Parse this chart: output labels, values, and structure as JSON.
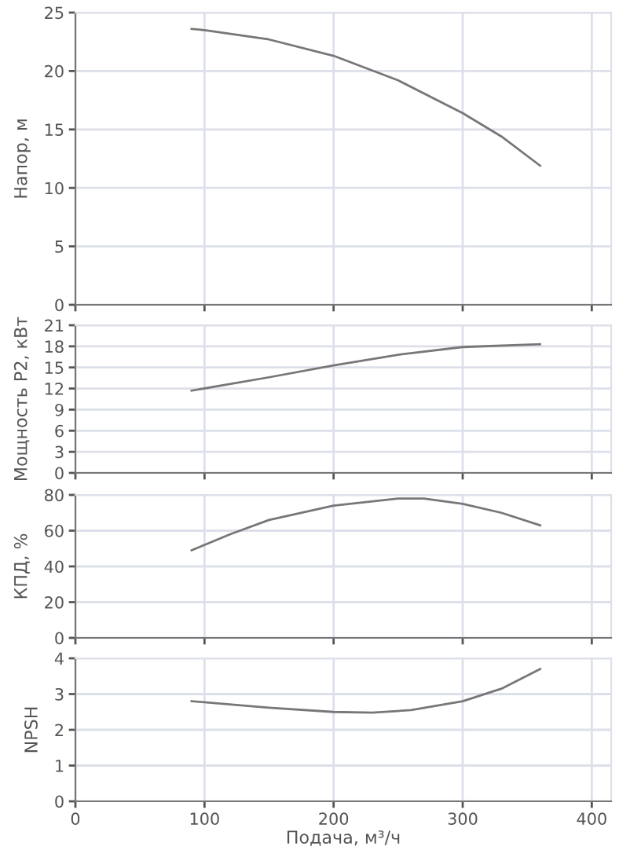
{
  "chart_data": [
    {
      "type": "line",
      "ylabel": "Напор, м",
      "xlim": [
        0,
        415
      ],
      "xticks": [
        0,
        100,
        200,
        300,
        400
      ],
      "ylim": [
        0,
        25
      ],
      "yticks": [
        0,
        5,
        10,
        15,
        20,
        25
      ],
      "grid": true,
      "tick_labels": "y",
      "series": [
        {
          "color": "#777777",
          "x": [
            90,
            100,
            150,
            200,
            250,
            300,
            330,
            360
          ],
          "values": [
            23.6,
            23.5,
            22.7,
            21.3,
            19.2,
            16.4,
            14.4,
            11.9
          ]
        }
      ]
    },
    {
      "type": "line",
      "ylabel": "Мощность P2, кВт",
      "xlim": [
        0,
        415
      ],
      "xticks": [
        0,
        100,
        200,
        300,
        400
      ],
      "ylim": [
        0,
        21
      ],
      "yticks": [
        0,
        3,
        6,
        9,
        12,
        15,
        18,
        21
      ],
      "grid": true,
      "tick_labels": "y",
      "series": [
        {
          "color": "#777777",
          "x": [
            90,
            150,
            200,
            250,
            300,
            360
          ],
          "values": [
            11.7,
            13.6,
            15.3,
            16.8,
            17.9,
            18.3
          ]
        }
      ]
    },
    {
      "type": "line",
      "ylabel": "КПД, %",
      "xlim": [
        0,
        415
      ],
      "xticks": [
        0,
        100,
        200,
        300,
        400
      ],
      "ylim": [
        0,
        80
      ],
      "yticks": [
        0,
        20,
        40,
        60,
        80
      ],
      "grid": true,
      "tick_labels": "y",
      "series": [
        {
          "color": "#777777",
          "x": [
            90,
            120,
            150,
            200,
            250,
            270,
            300,
            330,
            360
          ],
          "values": [
            49,
            58,
            66,
            74,
            78,
            78,
            75,
            70,
            63
          ]
        }
      ]
    },
    {
      "type": "line",
      "ylabel": "NPSH",
      "xlabel": "Подача, м³/ч",
      "xlim": [
        0,
        415
      ],
      "xticks": [
        0,
        100,
        200,
        300,
        400
      ],
      "ylim": [
        0,
        4
      ],
      "yticks": [
        0,
        1,
        2,
        3,
        4
      ],
      "grid": true,
      "series": [
        {
          "color": "#777777",
          "x": [
            90,
            150,
            200,
            230,
            260,
            300,
            330,
            360
          ],
          "values": [
            2.8,
            2.62,
            2.5,
            2.48,
            2.55,
            2.8,
            3.15,
            3.7
          ]
        }
      ]
    }
  ]
}
